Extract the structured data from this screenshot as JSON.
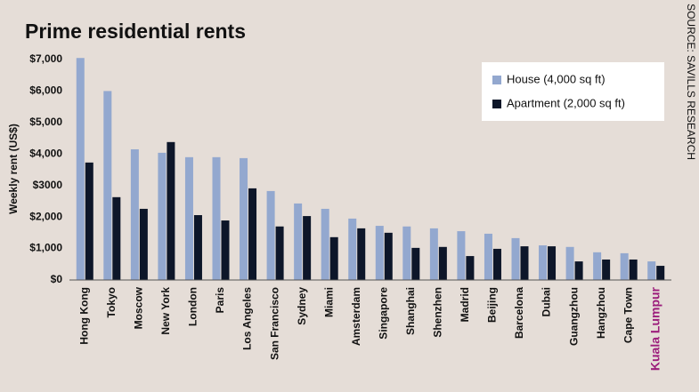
{
  "chart_data": {
    "type": "bar",
    "title": "Prime residential rents",
    "ylabel": "Weekly rent (US$)",
    "source": "SOURCE: SAVILLS RESEARCH",
    "categories": [
      "Hong Kong",
      "Tokyo",
      "Moscow",
      "New York",
      "London",
      "Paris",
      "Los Angeles",
      "San Francisco",
      "Sydney",
      "Miami",
      "Amsterdam",
      "Singapore",
      "Shanghai",
      "Shenzhen",
      "Madrid",
      "Beijing",
      "Barcelona",
      "Dubai",
      "Guangzhou",
      "Hangzhou",
      "Cape Town",
      "Kuala Lumpur"
    ],
    "series": [
      {
        "name": "House (4,000 sq ft)",
        "color": "#93a8cf",
        "values": [
          7050,
          6000,
          4150,
          4040,
          3900,
          3900,
          3870,
          2825,
          2430,
          2260,
          1950,
          1720,
          1700,
          1640,
          1550,
          1470,
          1330,
          1100,
          1050,
          880,
          850,
          590
        ]
      },
      {
        "name": "Apartment (2,000 sq ft)",
        "color": "#0d1629",
        "values": [
          3730,
          2630,
          2260,
          4380,
          2060,
          1890,
          2910,
          1700,
          2030,
          1360,
          1640,
          1500,
          1020,
          1050,
          760,
          990,
          1070,
          1070,
          590,
          650,
          650,
          450
        ]
      }
    ],
    "ylim": [
      0,
      7000
    ],
    "yticks": [
      {
        "value": 0,
        "label": "$0"
      },
      {
        "value": 1000,
        "label": "$1,000"
      },
      {
        "value": 2000,
        "label": "$2,000"
      },
      {
        "value": 3000,
        "label": "$3000"
      },
      {
        "value": 4000,
        "label": "$4,000"
      },
      {
        "value": 5000,
        "label": "$5,000"
      },
      {
        "value": 6000,
        "label": "$6,000"
      },
      {
        "value": 7000,
        "label": "$7,000"
      }
    ],
    "grid": false,
    "legend": "upper right",
    "highlight_category": "Kuala Lumpur",
    "highlight_color": "#9c1e7c"
  }
}
